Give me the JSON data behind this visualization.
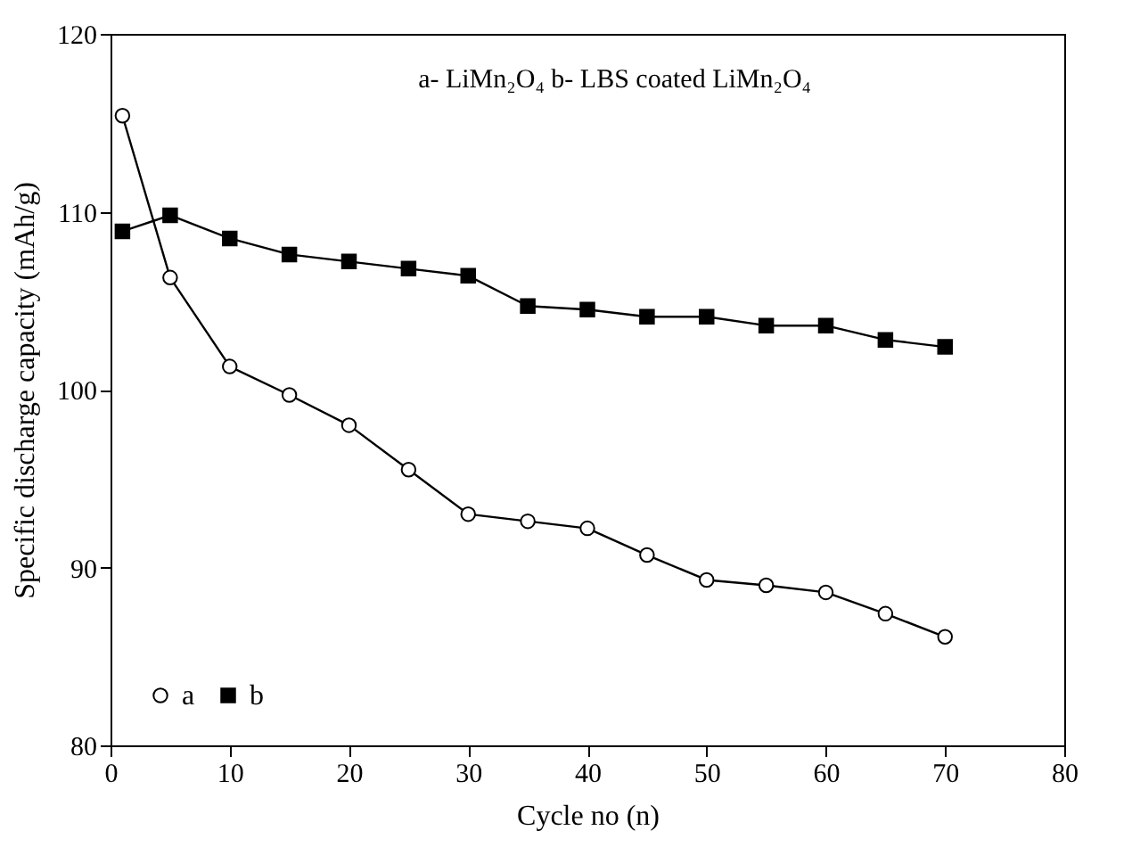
{
  "chart_data": {
    "type": "line",
    "xlabel": "Cycle no (n)",
    "ylabel": "Specific discharge capacity (mAh/g)",
    "annotations": [
      "a- LiMn₂O₄    b- LBS coated LiMn₂O₄"
    ],
    "x": [
      1,
      5,
      10,
      15,
      20,
      25,
      30,
      35,
      40,
      45,
      50,
      55,
      60,
      65,
      70
    ],
    "series": [
      {
        "name": "a",
        "color": "#000000",
        "marker": "circle",
        "values": [
          115.4,
          106.3,
          101.3,
          99.7,
          98.0,
          95.5,
          93.0,
          92.6,
          92.2,
          90.7,
          89.3,
          89.0,
          88.6,
          87.4,
          86.1
        ]
      },
      {
        "name": "b",
        "color": "#000000",
        "marker": "square",
        "values": [
          108.9,
          109.8,
          108.5,
          107.6,
          107.2,
          106.8,
          106.4,
          104.7,
          104.5,
          104.1,
          104.1,
          103.6,
          103.6,
          102.8,
          102.4
        ]
      }
    ],
    "xlim": [
      0,
      80
    ],
    "xticks": [
      0,
      10,
      20,
      30,
      40,
      50,
      60,
      70,
      80
    ],
    "ylim": [
      80,
      120
    ],
    "yticks": [
      80,
      90,
      100,
      110,
      120
    ],
    "grid": false,
    "legend": "bottom left",
    "line_style": "solid"
  }
}
